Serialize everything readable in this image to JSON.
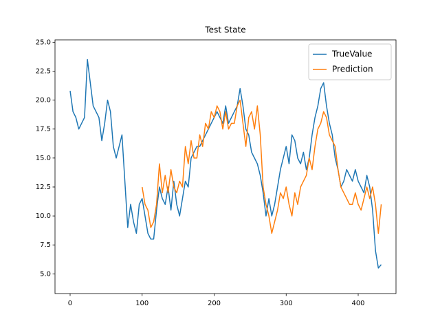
{
  "chart_data": {
    "type": "line",
    "title": "Test State",
    "x": [
      0,
      4,
      8,
      12,
      16,
      20,
      24,
      28,
      32,
      36,
      40,
      44,
      48,
      52,
      56,
      60,
      64,
      68,
      72,
      76,
      80,
      84,
      88,
      92,
      96,
      100,
      104,
      108,
      112,
      116,
      120,
      124,
      128,
      132,
      136,
      140,
      144,
      148,
      152,
      156,
      160,
      164,
      168,
      172,
      176,
      180,
      184,
      188,
      192,
      196,
      200,
      204,
      208,
      212,
      216,
      220,
      224,
      228,
      232,
      236,
      240,
      244,
      248,
      252,
      256,
      260,
      264,
      268,
      272,
      276,
      280,
      284,
      288,
      292,
      296,
      300,
      304,
      308,
      312,
      316,
      320,
      324,
      328,
      332,
      336,
      340,
      344,
      348,
      352,
      356,
      360,
      364,
      368,
      372,
      376,
      380,
      384,
      388,
      392,
      396,
      400,
      404,
      408,
      412,
      416,
      420,
      424,
      428,
      432
    ],
    "series": [
      {
        "name": "TrueValue",
        "color": "#1f77b4",
        "values": [
          20.8,
          19,
          18.5,
          17.5,
          18,
          18.5,
          23.5,
          21.5,
          19.5,
          19,
          18.5,
          16.5,
          18,
          20,
          19,
          16,
          15,
          16,
          17,
          13,
          9,
          11,
          9.5,
          8.5,
          11,
          11.5,
          10,
          8.5,
          8,
          8,
          10.5,
          12.5,
          11.5,
          11,
          12.5,
          10.5,
          13,
          11,
          10,
          11.5,
          13,
          12.5,
          15,
          15.5,
          16,
          16,
          16.5,
          17,
          17.5,
          18,
          18.5,
          19,
          18.5,
          18,
          19.5,
          18,
          18.5,
          19,
          19.5,
          21,
          19.5,
          17.5,
          17,
          15.5,
          15,
          14.5,
          13.5,
          12,
          10,
          11.5,
          10,
          11,
          12.5,
          14,
          15,
          16,
          14.5,
          17,
          16.5,
          15,
          14.5,
          15.5,
          14,
          15,
          17,
          18.5,
          19.5,
          21,
          21.5,
          19.5,
          18,
          17,
          15,
          14,
          12.5,
          13,
          14,
          13.5,
          13,
          14,
          13,
          12.5,
          12,
          13.5,
          12.5,
          10.5,
          7,
          5.5,
          5.8
        ]
      },
      {
        "name": "Prediction",
        "color": "#ff7f0e",
        "values": [
          null,
          null,
          null,
          null,
          null,
          null,
          null,
          null,
          null,
          null,
          null,
          null,
          null,
          null,
          null,
          null,
          null,
          null,
          null,
          null,
          null,
          null,
          null,
          null,
          null,
          12.5,
          11,
          10.5,
          9,
          9.5,
          11,
          14.5,
          12,
          13.5,
          12,
          14,
          12.5,
          12,
          13,
          12.5,
          16,
          14.5,
          16.5,
          15,
          15,
          17,
          16,
          18,
          17.5,
          19,
          18.5,
          19.5,
          19,
          17.5,
          19,
          17.5,
          18,
          18,
          19.5,
          20,
          18,
          16,
          18.5,
          19,
          17.5,
          19.5,
          17,
          12.5,
          11,
          10,
          8.5,
          9.5,
          10.5,
          12,
          11.5,
          12.5,
          11,
          10,
          12,
          11,
          12.5,
          13,
          13.5,
          15,
          14,
          16,
          17.5,
          18,
          19,
          18.5,
          17,
          16.5,
          16,
          14,
          12.5,
          12,
          11.5,
          11,
          11,
          12,
          11,
          10.5,
          11.5,
          12.5,
          11.5,
          12.5,
          11,
          8.5,
          11
        ]
      }
    ],
    "xlim": [
      -21,
      452.5
    ],
    "ylim": [
      3.3,
      25.2
    ],
    "xticks": [
      0,
      100,
      200,
      300,
      400
    ],
    "yticks": [
      {
        "value": 5,
        "label": "5.0"
      },
      {
        "value": 7.5,
        "label": "7.5"
      },
      {
        "value": 10,
        "label": "10.0"
      },
      {
        "value": 12.5,
        "label": "12.5"
      },
      {
        "value": 15,
        "label": "15.0"
      },
      {
        "value": 17.5,
        "label": "17.5"
      },
      {
        "value": 20,
        "label": "20.0"
      },
      {
        "value": 22.5,
        "label": "22.5"
      },
      {
        "value": 25,
        "label": "25.0"
      }
    ],
    "legend": "upper right",
    "grid": false
  }
}
